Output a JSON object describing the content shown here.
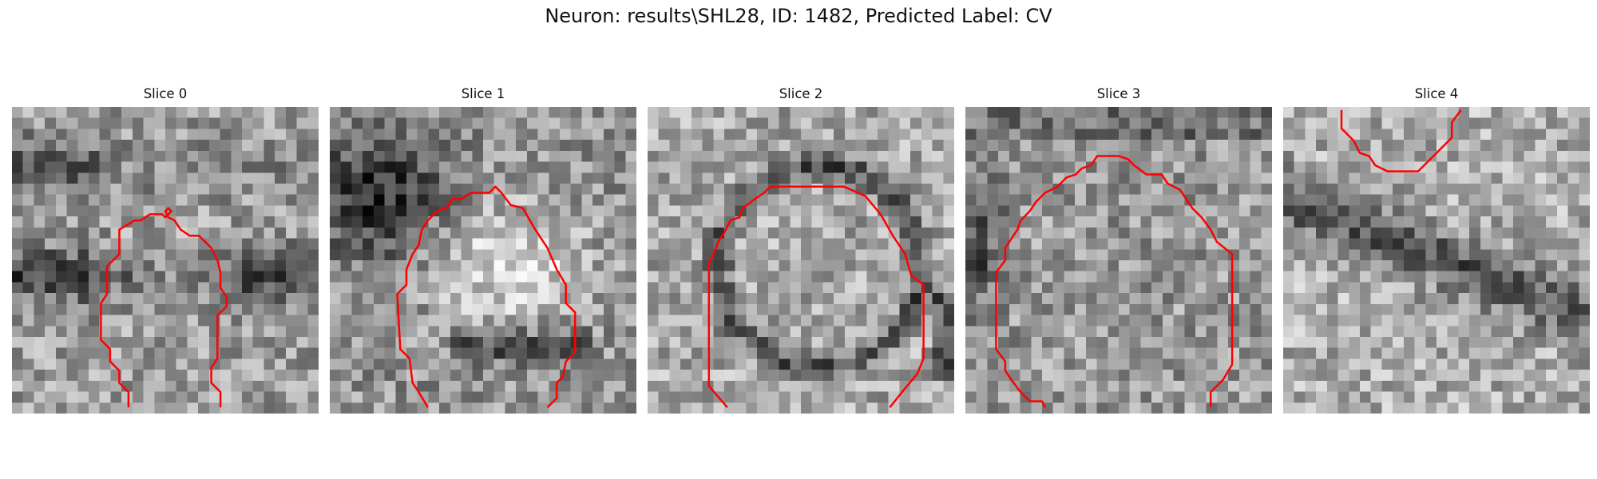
{
  "figure": {
    "title": "Neuron: results\\SHL28, ID: 1482, Predicted Label: CV"
  },
  "contour_color": "#ff0000",
  "grid_size": 28,
  "slices": [
    {
      "label": "Slice 0"
    },
    {
      "label": "Slice 1"
    },
    {
      "label": "Slice 2"
    },
    {
      "label": "Slice 3"
    },
    {
      "label": "Slice 4"
    }
  ]
}
